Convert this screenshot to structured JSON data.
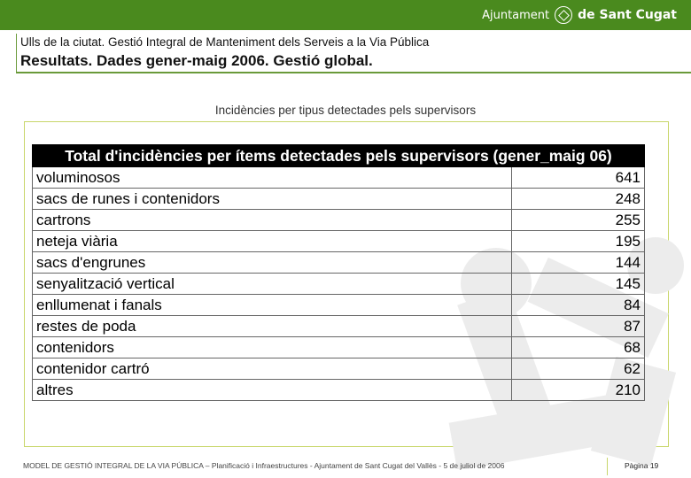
{
  "brand": {
    "logo_text_1": "Ajuntament",
    "logo_text_2": "de Sant Cugat"
  },
  "header": {
    "line1": "Ulls de la ciutat. Gestió Integral de Manteniment dels Serveis a la Via Pública",
    "line2": "Resultats. Dades gener-maig 2006. Gestió global."
  },
  "subtitle": "Incidències per tipus detectades pels supervisors",
  "table": {
    "title": "Total d'incidències per ítems detectades pels supervisors (gener_maig 06)",
    "rows": [
      {
        "label": "voluminosos",
        "value": "641"
      },
      {
        "label": "sacs de runes i contenidors",
        "value": "248"
      },
      {
        "label": "cartrons",
        "value": "255"
      },
      {
        "label": "neteja viària",
        "value": "195"
      },
      {
        "label": "sacs d'engrunes",
        "value": "144"
      },
      {
        "label": "senyalització vertical",
        "value": "145"
      },
      {
        "label": "enllumenat i fanals",
        "value": "84"
      },
      {
        "label": "restes de poda",
        "value": "87"
      },
      {
        "label": "contenidors",
        "value": "68"
      },
      {
        "label": "contenidor cartró",
        "value": "62"
      },
      {
        "label": "altres",
        "value": "210"
      }
    ]
  },
  "footer": {
    "text": "MODEL DE GESTIÓ INTEGRAL DE LA VIA PÚBLICA – Planificació i Infraestructures - Ajuntament de Sant Cugat del Vallès - 5 de juliol de 2006",
    "page": "Pàgina 19"
  },
  "colors": {
    "topbar": "#4a8a1e",
    "rule": "#6a9a3a",
    "panel_border": "#c8d66a",
    "watermark": "#ececec"
  }
}
